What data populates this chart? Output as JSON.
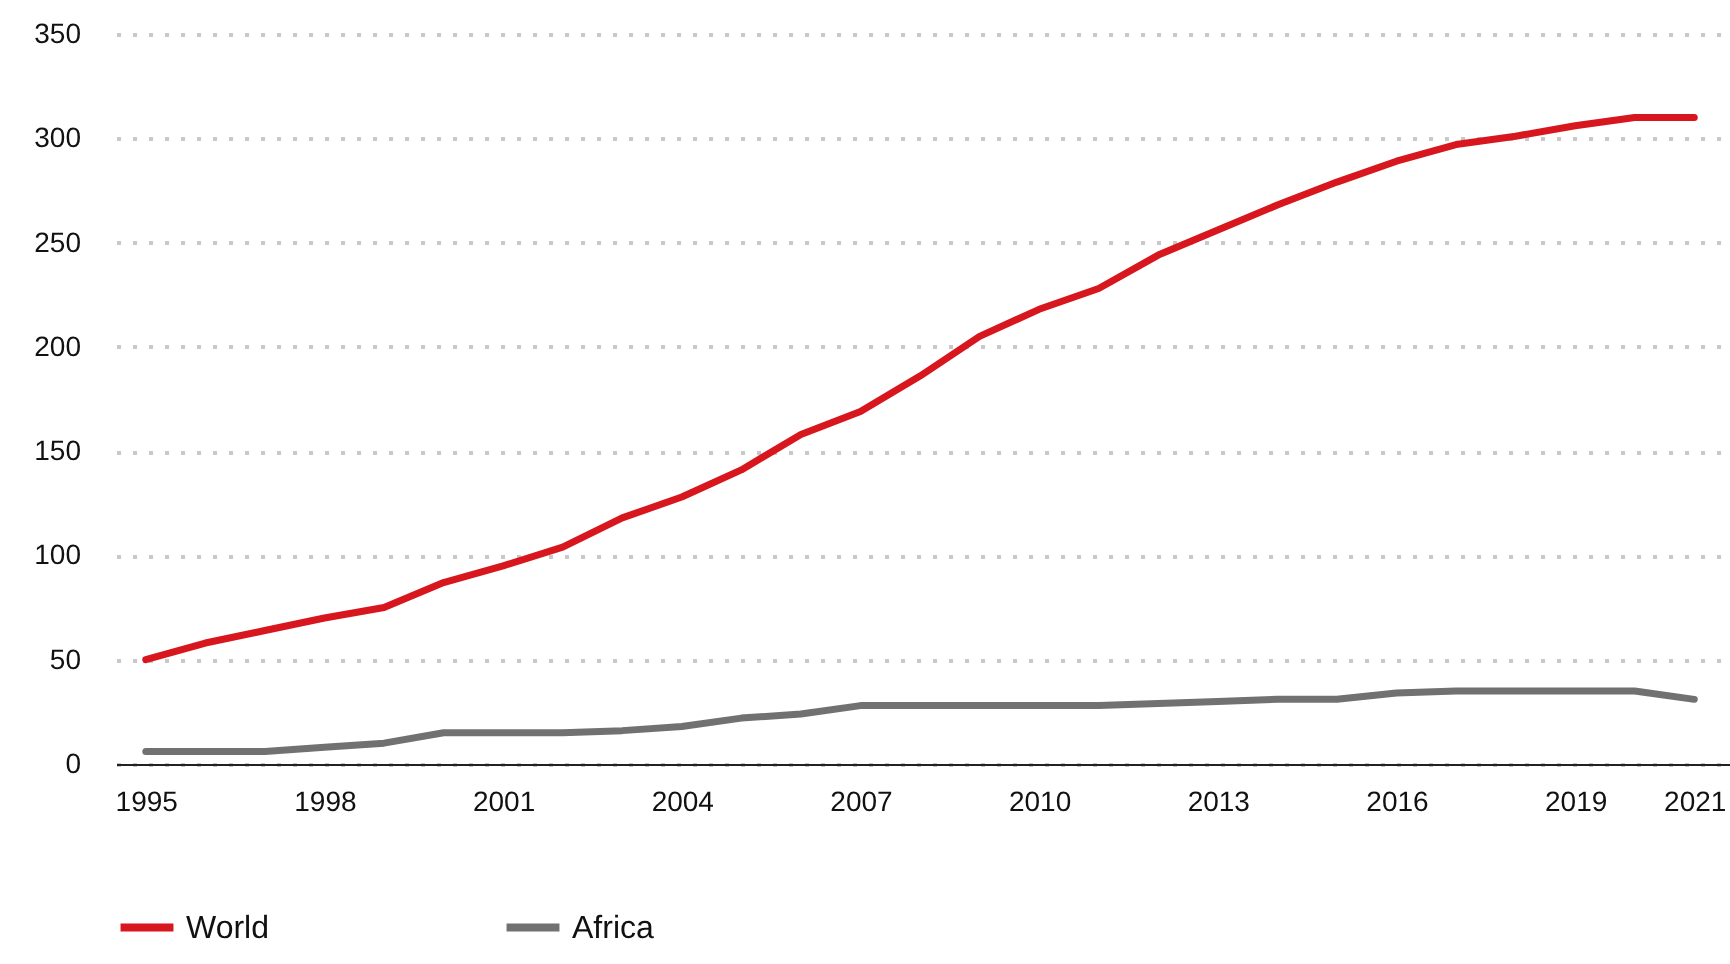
{
  "chart_data": {
    "type": "line",
    "x": [
      1995,
      1996,
      1997,
      1998,
      1999,
      2000,
      2001,
      2002,
      2003,
      2004,
      2005,
      2006,
      2007,
      2008,
      2009,
      2010,
      2011,
      2012,
      2013,
      2014,
      2015,
      2016,
      2017,
      2018,
      2019,
      2020,
      2021
    ],
    "series": [
      {
        "name": "World",
        "color": "#d7161e",
        "values": [
          50,
          58,
          64,
          70,
          75,
          87,
          95,
          104,
          118,
          128,
          141,
          158,
          169,
          186,
          205,
          218,
          228,
          244,
          256,
          268,
          279,
          289,
          297,
          301,
          306,
          310,
          310
        ]
      },
      {
        "name": "Africa",
        "color": "#717171",
        "values": [
          6,
          6,
          6,
          8,
          10,
          15,
          15,
          15,
          16,
          18,
          22,
          24,
          28,
          28,
          28,
          28,
          28,
          29,
          30,
          31,
          31,
          34,
          35,
          35,
          35,
          35,
          31
        ]
      }
    ],
    "xlim": [
      1994.5,
      2021.6
    ],
    "xticks": [
      1995,
      1998,
      2001,
      2004,
      2007,
      2010,
      2013,
      2016,
      2019,
      2021
    ],
    "ylim": [
      0,
      350
    ],
    "yticks": [
      0,
      50,
      100,
      150,
      200,
      250,
      300,
      350
    ],
    "grid": "y",
    "legend": "bottom",
    "marker": "none",
    "line_style": "solid"
  }
}
